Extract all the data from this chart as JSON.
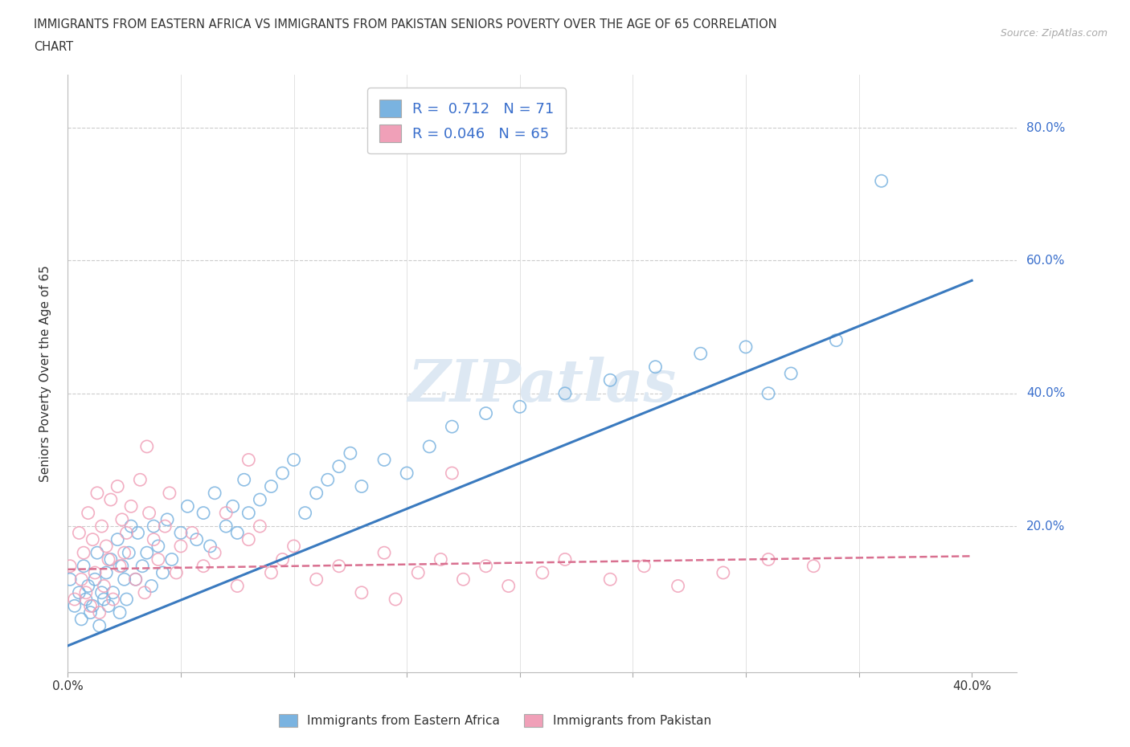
{
  "title_line1": "IMMIGRANTS FROM EASTERN AFRICA VS IMMIGRANTS FROM PAKISTAN SENIORS POVERTY OVER THE AGE OF 65 CORRELATION",
  "title_line2": "CHART",
  "source": "Source: ZipAtlas.com",
  "ylabel": "Seniors Poverty Over the Age of 65",
  "xlim": [
    0.0,
    0.42
  ],
  "ylim": [
    -0.02,
    0.88
  ],
  "blue_color": "#7ab3e0",
  "pink_color": "#f0a0b8",
  "blue_line_color": "#3a7abf",
  "pink_line_color": "#d97090",
  "watermark_color": "#dde8f3",
  "legend_text_color": "#3a6fcc",
  "ytick_color": "#3a6fcc",
  "xtick_color": "#333333",
  "blue_scatter_x": [
    0.001,
    0.003,
    0.005,
    0.006,
    0.007,
    0.008,
    0.009,
    0.01,
    0.011,
    0.012,
    0.013,
    0.014,
    0.015,
    0.016,
    0.017,
    0.018,
    0.019,
    0.02,
    0.022,
    0.023,
    0.024,
    0.025,
    0.026,
    0.027,
    0.028,
    0.03,
    0.031,
    0.033,
    0.035,
    0.037,
    0.038,
    0.04,
    0.042,
    0.044,
    0.046,
    0.05,
    0.053,
    0.057,
    0.06,
    0.063,
    0.065,
    0.07,
    0.073,
    0.075,
    0.078,
    0.08,
    0.085,
    0.09,
    0.095,
    0.1,
    0.105,
    0.11,
    0.115,
    0.12,
    0.125,
    0.13,
    0.14,
    0.15,
    0.16,
    0.17,
    0.185,
    0.2,
    0.22,
    0.24,
    0.26,
    0.28,
    0.3,
    0.31,
    0.32,
    0.34,
    0.36
  ],
  "blue_scatter_y": [
    0.12,
    0.08,
    0.1,
    0.06,
    0.14,
    0.09,
    0.11,
    0.07,
    0.08,
    0.12,
    0.16,
    0.05,
    0.1,
    0.09,
    0.13,
    0.08,
    0.15,
    0.1,
    0.18,
    0.07,
    0.14,
    0.12,
    0.09,
    0.16,
    0.2,
    0.12,
    0.19,
    0.14,
    0.16,
    0.11,
    0.2,
    0.17,
    0.13,
    0.21,
    0.15,
    0.19,
    0.23,
    0.18,
    0.22,
    0.17,
    0.25,
    0.2,
    0.23,
    0.19,
    0.27,
    0.22,
    0.24,
    0.26,
    0.28,
    0.3,
    0.22,
    0.25,
    0.27,
    0.29,
    0.31,
    0.26,
    0.3,
    0.28,
    0.32,
    0.35,
    0.37,
    0.38,
    0.4,
    0.42,
    0.44,
    0.46,
    0.47,
    0.4,
    0.43,
    0.48,
    0.72
  ],
  "pink_scatter_x": [
    0.001,
    0.003,
    0.005,
    0.006,
    0.007,
    0.008,
    0.009,
    0.01,
    0.011,
    0.012,
    0.013,
    0.014,
    0.015,
    0.016,
    0.017,
    0.018,
    0.019,
    0.02,
    0.022,
    0.023,
    0.024,
    0.025,
    0.026,
    0.028,
    0.03,
    0.032,
    0.034,
    0.036,
    0.038,
    0.04,
    0.043,
    0.045,
    0.048,
    0.05,
    0.055,
    0.06,
    0.065,
    0.07,
    0.075,
    0.08,
    0.085,
    0.09,
    0.095,
    0.1,
    0.11,
    0.12,
    0.13,
    0.14,
    0.155,
    0.165,
    0.175,
    0.185,
    0.195,
    0.21,
    0.22,
    0.24,
    0.255,
    0.27,
    0.29,
    0.31,
    0.33,
    0.17,
    0.145,
    0.08,
    0.035
  ],
  "pink_scatter_y": [
    0.14,
    0.09,
    0.19,
    0.12,
    0.16,
    0.1,
    0.22,
    0.08,
    0.18,
    0.13,
    0.25,
    0.07,
    0.2,
    0.11,
    0.17,
    0.15,
    0.24,
    0.09,
    0.26,
    0.14,
    0.21,
    0.16,
    0.19,
    0.23,
    0.12,
    0.27,
    0.1,
    0.22,
    0.18,
    0.15,
    0.2,
    0.25,
    0.13,
    0.17,
    0.19,
    0.14,
    0.16,
    0.22,
    0.11,
    0.18,
    0.2,
    0.13,
    0.15,
    0.17,
    0.12,
    0.14,
    0.1,
    0.16,
    0.13,
    0.15,
    0.12,
    0.14,
    0.11,
    0.13,
    0.15,
    0.12,
    0.14,
    0.11,
    0.13,
    0.15,
    0.14,
    0.28,
    0.09,
    0.3,
    0.32
  ],
  "blue_line_x0": 0.0,
  "blue_line_y0": 0.02,
  "blue_line_x1": 0.4,
  "blue_line_y1": 0.57,
  "pink_line_x0": 0.0,
  "pink_line_y0": 0.135,
  "pink_line_x1": 0.4,
  "pink_line_y1": 0.155
}
